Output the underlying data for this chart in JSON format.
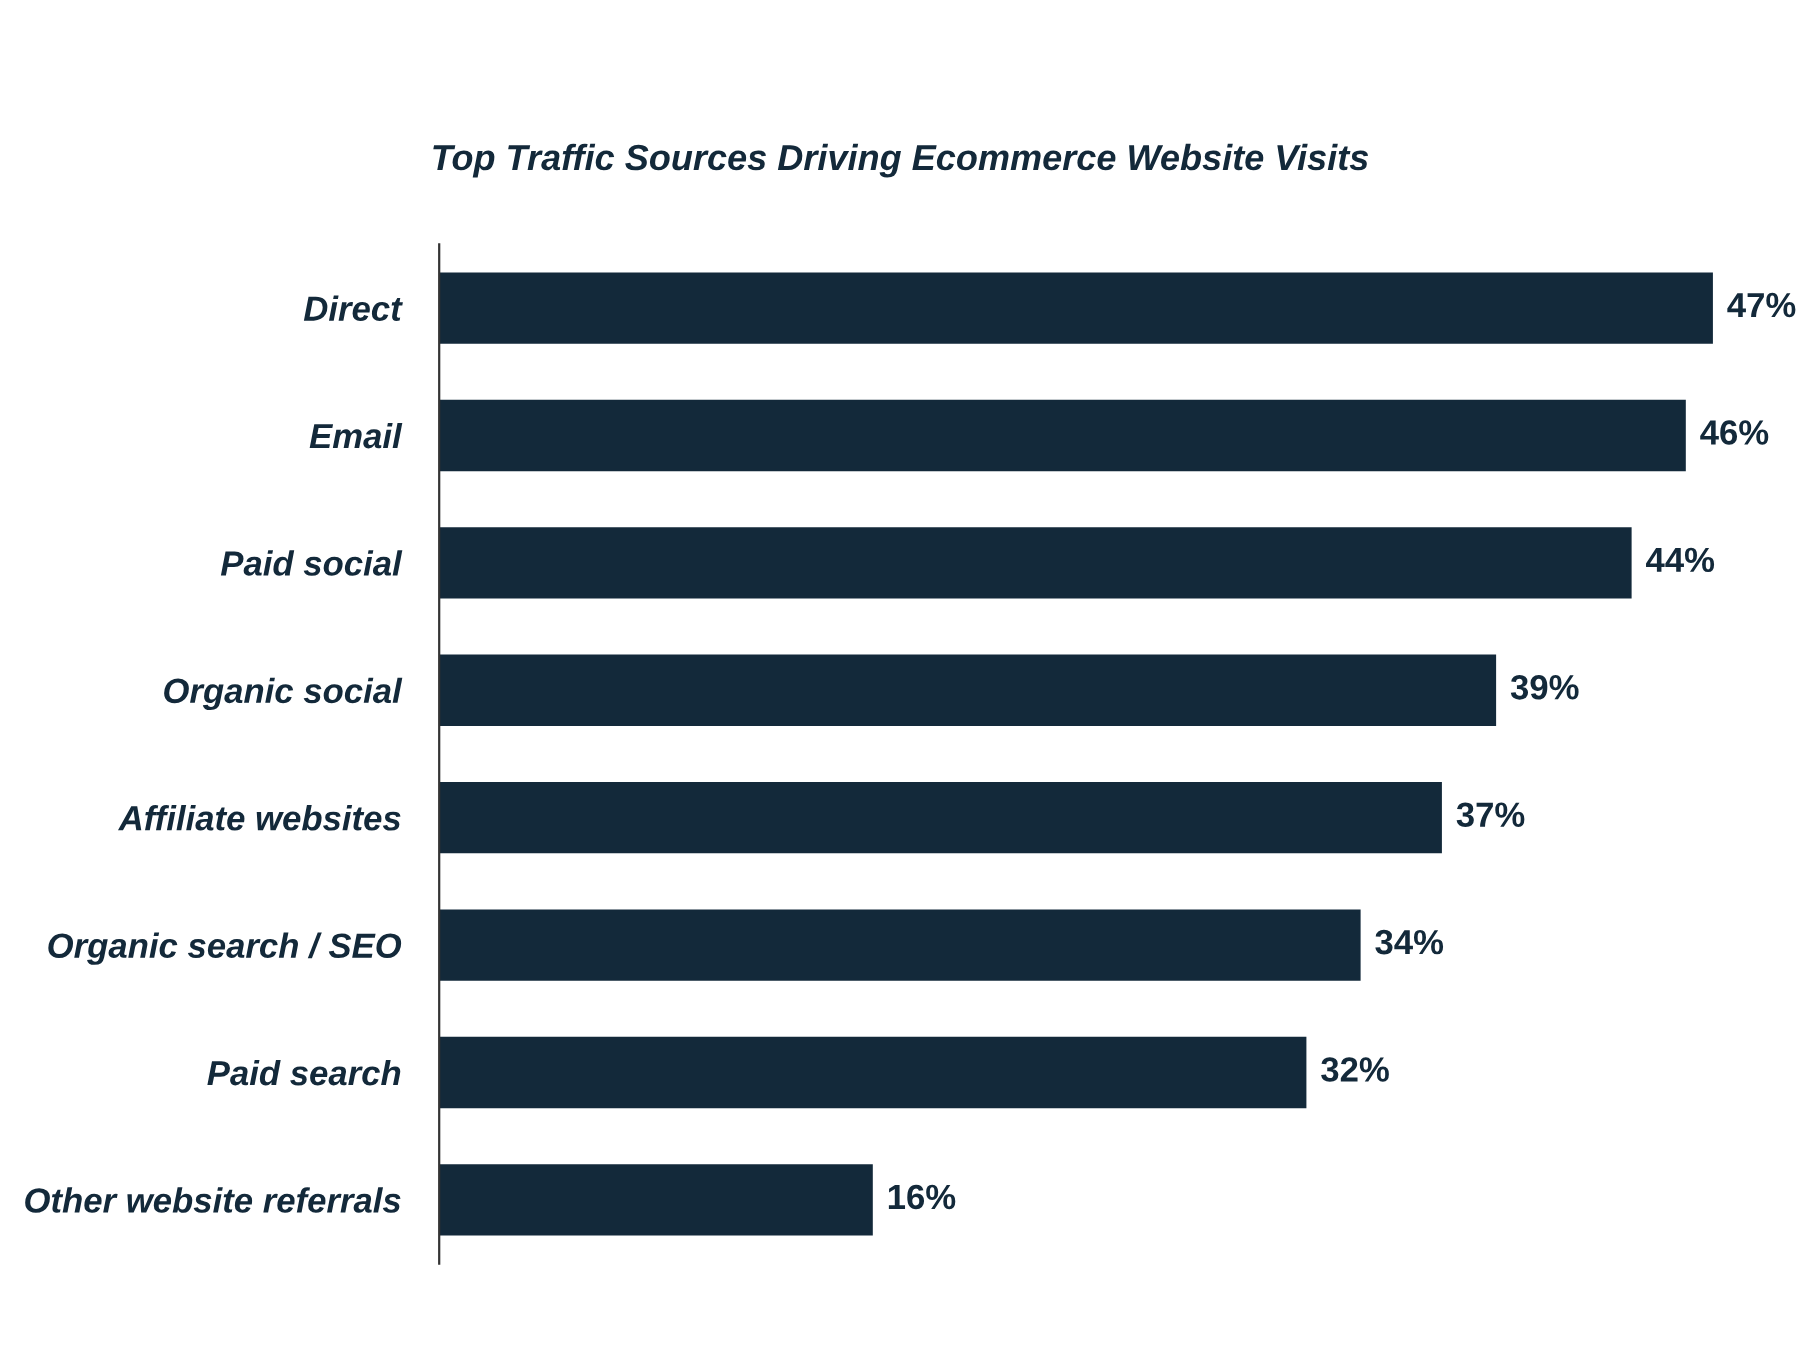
{
  "chart_data": {
    "type": "bar",
    "orientation": "horizontal",
    "title": "Top Traffic Sources Driving Ecommerce Website Visits",
    "categories": [
      "Direct",
      "Email",
      "Paid social",
      "Organic social",
      "Affiliate websites",
      "Organic search / SEO",
      "Paid search",
      "Other website referrals"
    ],
    "values": [
      47,
      46,
      44,
      39,
      37,
      34,
      32,
      16
    ],
    "value_labels": [
      "47%",
      "46%",
      "44%",
      "39%",
      "37%",
      "34%",
      "32%",
      "16%"
    ],
    "color": "#13293a",
    "tick_labels": "y",
    "grid": false,
    "legend": false
  }
}
